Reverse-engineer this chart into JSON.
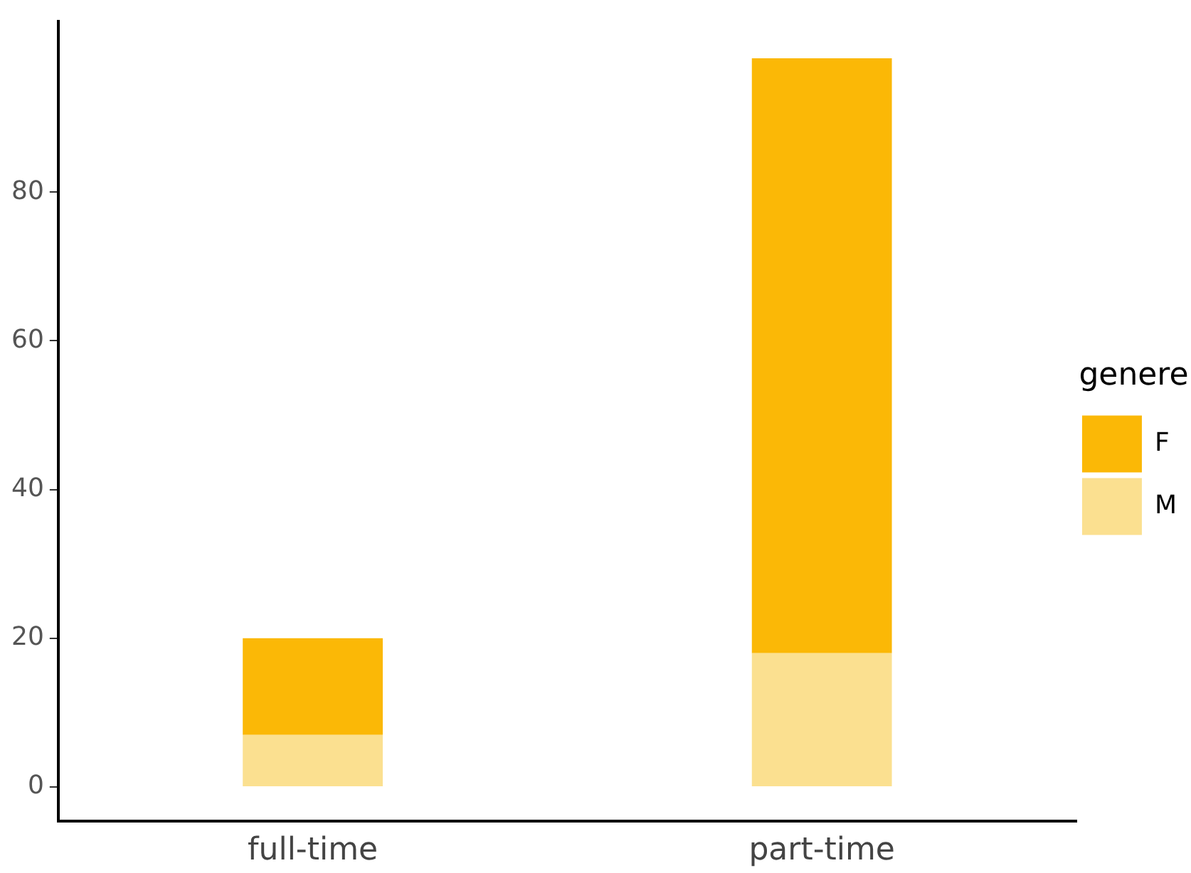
{
  "chart_data": {
    "type": "bar",
    "stacked": true,
    "categories": [
      "full-time",
      "part-time"
    ],
    "series": [
      {
        "name": "M",
        "color": "#fbe090",
        "values": [
          7,
          18
        ]
      },
      {
        "name": "F",
        "color": "#fbb806",
        "values": [
          13,
          80
        ]
      }
    ],
    "ylim": [
      -4.6,
      103
    ],
    "yticks": [
      0,
      20,
      40,
      60,
      80
    ],
    "grid": false,
    "legend": "right",
    "legend_title": "genere"
  }
}
